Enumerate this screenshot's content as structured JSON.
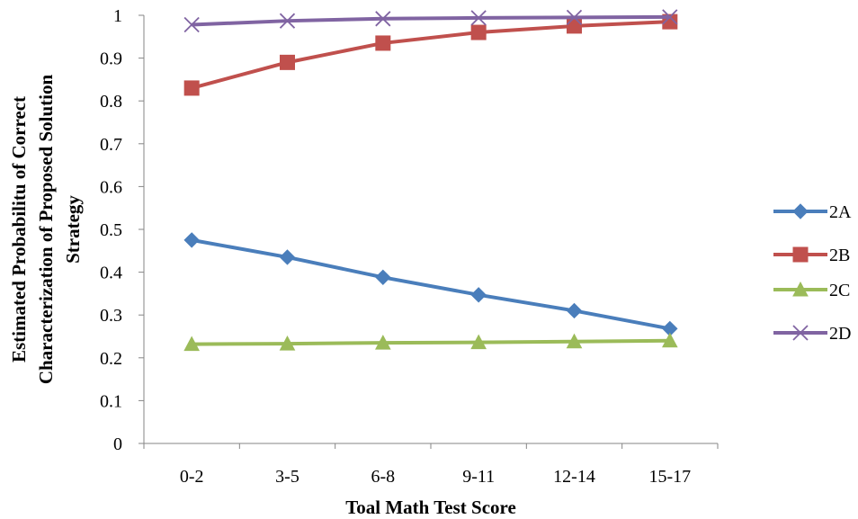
{
  "chart_data": {
    "type": "line",
    "categories": [
      "0-2",
      "3-5",
      "6-8",
      "9-11",
      "12-14",
      "15-17"
    ],
    "xlabel": "Toal Math Test Score",
    "ylabel_lines": [
      "Estimated Probabilitu of Correct",
      "Characterization of Proposed Solution",
      "Strategy"
    ],
    "ylim": [
      0,
      1
    ],
    "yticks": [
      "0",
      "0.1",
      "0.2",
      "0.3",
      "0.4",
      "0.5",
      "0.6",
      "0.7",
      "0.8",
      "0.9",
      "1"
    ],
    "grid": false,
    "legend_position": "right",
    "series": [
      {
        "name": "2A",
        "color": "#4a7ebb",
        "marker": "diamond",
        "values": [
          0.475,
          0.435,
          0.388,
          0.347,
          0.31,
          0.268
        ]
      },
      {
        "name": "2B",
        "color": "#c0504d",
        "marker": "square",
        "values": [
          0.83,
          0.89,
          0.935,
          0.96,
          0.975,
          0.985
        ]
      },
      {
        "name": "2C",
        "color": "#9bbb59",
        "marker": "triangle",
        "values": [
          0.232,
          0.233,
          0.235,
          0.236,
          0.238,
          0.24
        ]
      },
      {
        "name": "2D",
        "color": "#8064a2",
        "marker": "x",
        "values": [
          0.978,
          0.987,
          0.992,
          0.994,
          0.995,
          0.996
        ]
      }
    ]
  }
}
